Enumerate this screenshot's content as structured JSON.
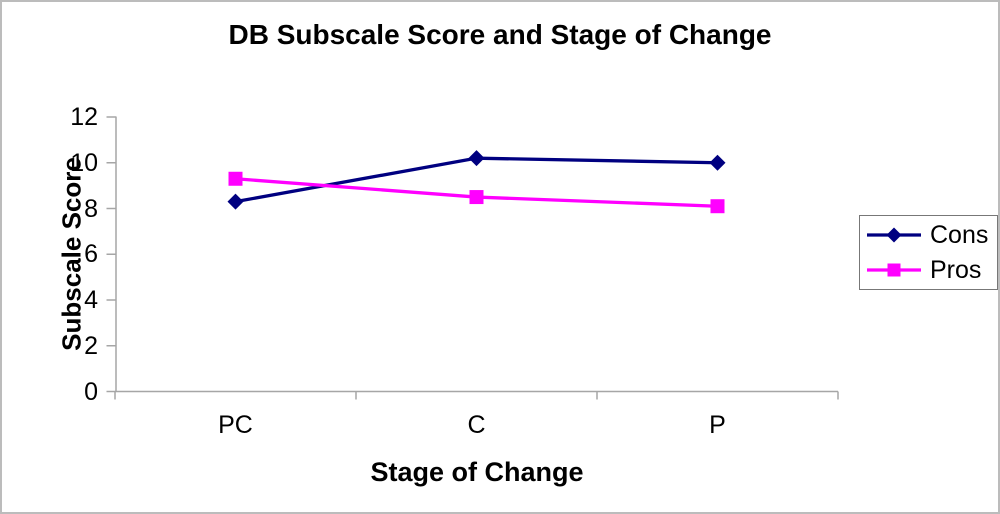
{
  "window": {
    "background": "#ffffff",
    "frame_border_color": "#bcbcbc"
  },
  "chart_data": {
    "type": "line",
    "title": "DB Subscale Score and Stage of Change",
    "xlabel": "Stage of Change",
    "ylabel": "Subscale Score",
    "categories": [
      "PC",
      "C",
      "P"
    ],
    "series": [
      {
        "name": "Cons",
        "values": [
          8.3,
          10.2,
          10.0
        ],
        "color": "#000080",
        "marker": "diamond"
      },
      {
        "name": "Pros",
        "values": [
          9.3,
          8.5,
          8.1
        ],
        "color": "#ff00ff",
        "marker": "square"
      }
    ],
    "y_ticks": [
      0,
      2,
      4,
      6,
      8,
      10,
      12
    ],
    "ylim": [
      0,
      12
    ],
    "grid": false,
    "legend_position": "right",
    "axis_color": "#a6a6a6",
    "text_color": "#000000"
  }
}
